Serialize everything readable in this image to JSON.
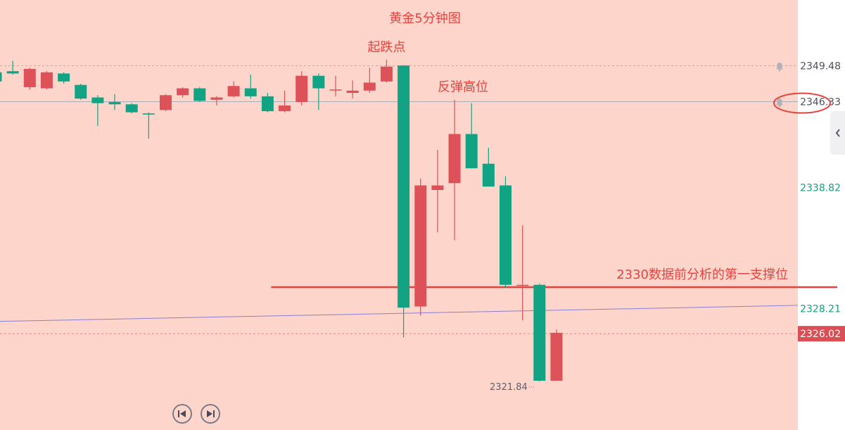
{
  "chart_data": {
    "type": "candlestick",
    "title": "黄金5分钟图",
    "price_range": [
      2319.5,
      2354.0
    ],
    "right_axis_labels": [
      {
        "value": 2349.48,
        "label": "2349.48",
        "color": "#505060",
        "bell": true
      },
      {
        "value": 2346.33,
        "label": "2346.33",
        "color": "#505060",
        "bell": true,
        "circled": true
      },
      {
        "value": 2338.82,
        "label": "2338.82",
        "color": "#18a07a"
      },
      {
        "value": 2328.21,
        "label": "2328.21",
        "color": "#18a07a"
      },
      {
        "value": 2326.02,
        "label": "2326.02",
        "color": "#ffffff",
        "boxed": true,
        "box_color": "#d94f55"
      }
    ],
    "low_marker": {
      "value": 2321.84,
      "label": "2321.84"
    },
    "annotations": [
      {
        "text": "起跌点",
        "candle_index": 23
      },
      {
        "text": "反弹高位",
        "candle_index": 27
      },
      {
        "text": "2330数据前分析的第一支撑位",
        "value": 2330.1
      }
    ],
    "horizontal_lines": [
      {
        "value": 2349.48,
        "style": "dashed",
        "color": "#d9a08e"
      },
      {
        "value": 2346.33,
        "style": "solid",
        "color": "#a9adb8"
      },
      {
        "value": 2326.02,
        "style": "dashed",
        "color": "#e08a78"
      },
      {
        "value": 2330.1,
        "style": "solid",
        "color": "#e8423f",
        "role": "support",
        "from_candle": 16
      }
    ],
    "trend_line": {
      "start_value": 2327.1,
      "end_value": 2328.5,
      "color": "#8a7fd0"
    },
    "candles": [
      {
        "o": 2348.9,
        "c": 2348.1,
        "h": 2349.0,
        "l": 2347.6
      },
      {
        "o": 2349.0,
        "c": 2348.8,
        "h": 2349.9,
        "l": 2348.7
      },
      {
        "o": 2347.6,
        "c": 2349.2,
        "h": 2349.3,
        "l": 2347.4
      },
      {
        "o": 2347.5,
        "c": 2348.9,
        "h": 2349.0,
        "l": 2347.4
      },
      {
        "o": 2348.8,
        "c": 2348.1,
        "h": 2348.9,
        "l": 2347.9
      },
      {
        "o": 2347.8,
        "c": 2346.6,
        "h": 2347.9,
        "l": 2346.5
      },
      {
        "o": 2346.7,
        "c": 2346.2,
        "h": 2346.9,
        "l": 2344.2
      },
      {
        "o": 2346.3,
        "c": 2346.1,
        "h": 2347.0,
        "l": 2345.6
      },
      {
        "o": 2346.1,
        "c": 2345.4,
        "h": 2346.2,
        "l": 2345.3
      },
      {
        "o": 2345.3,
        "c": 2345.2,
        "h": 2345.4,
        "l": 2343.1
      },
      {
        "o": 2345.6,
        "c": 2346.9,
        "h": 2347.0,
        "l": 2345.5
      },
      {
        "o": 2346.9,
        "c": 2347.5,
        "h": 2347.6,
        "l": 2346.7
      },
      {
        "o": 2347.5,
        "c": 2346.4,
        "h": 2347.6,
        "l": 2346.3
      },
      {
        "o": 2346.5,
        "c": 2346.7,
        "h": 2346.8,
        "l": 2346.0
      },
      {
        "o": 2346.8,
        "c": 2347.7,
        "h": 2348.1,
        "l": 2346.7
      },
      {
        "o": 2347.5,
        "c": 2346.8,
        "h": 2348.7,
        "l": 2346.6
      },
      {
        "o": 2346.8,
        "c": 2345.5,
        "h": 2347.1,
        "l": 2345.4
      },
      {
        "o": 2345.5,
        "c": 2346.0,
        "h": 2347.3,
        "l": 2345.4
      },
      {
        "o": 2346.3,
        "c": 2348.6,
        "h": 2349.0,
        "l": 2346.0
      },
      {
        "o": 2348.6,
        "c": 2347.5,
        "h": 2348.8,
        "l": 2345.6
      },
      {
        "o": 2347.4,
        "c": 2347.4,
        "h": 2348.6,
        "l": 2346.8
      },
      {
        "o": 2347.1,
        "c": 2347.3,
        "h": 2348.2,
        "l": 2346.6
      },
      {
        "o": 2347.3,
        "c": 2348.0,
        "h": 2349.3,
        "l": 2347.1
      },
      {
        "o": 2348.1,
        "c": 2349.4,
        "h": 2350.0,
        "l": 2348.0
      },
      {
        "o": 2349.5,
        "c": 2328.3,
        "h": 2349.5,
        "l": 2325.7
      },
      {
        "o": 2328.4,
        "c": 2339.0,
        "h": 2339.6,
        "l": 2327.6
      },
      {
        "o": 2338.6,
        "c": 2339.0,
        "h": 2342.1,
        "l": 2334.9
      },
      {
        "o": 2339.2,
        "c": 2343.5,
        "h": 2346.5,
        "l": 2334.2
      },
      {
        "o": 2343.5,
        "c": 2340.5,
        "h": 2346.2,
        "l": 2340.5
      },
      {
        "o": 2340.9,
        "c": 2338.9,
        "h": 2342.3,
        "l": 2338.9
      },
      {
        "o": 2339.0,
        "c": 2330.3,
        "h": 2339.8,
        "l": 2330.0
      },
      {
        "o": 2330.3,
        "c": 2330.3,
        "h": 2335.5,
        "l": 2327.2
      },
      {
        "o": 2330.3,
        "c": 2321.9,
        "h": 2330.4,
        "l": 2321.84
      },
      {
        "o": 2321.9,
        "c": 2326.1,
        "h": 2326.4,
        "l": 2321.9
      }
    ]
  },
  "colors": {
    "up": "#dd5158",
    "down": "#12a385",
    "annotation": "#e8423f"
  },
  "controls": {
    "prev_icon": "skip-back-icon",
    "next_icon": "skip-forward-icon",
    "collapse_icon": "chevron-left-icon"
  }
}
